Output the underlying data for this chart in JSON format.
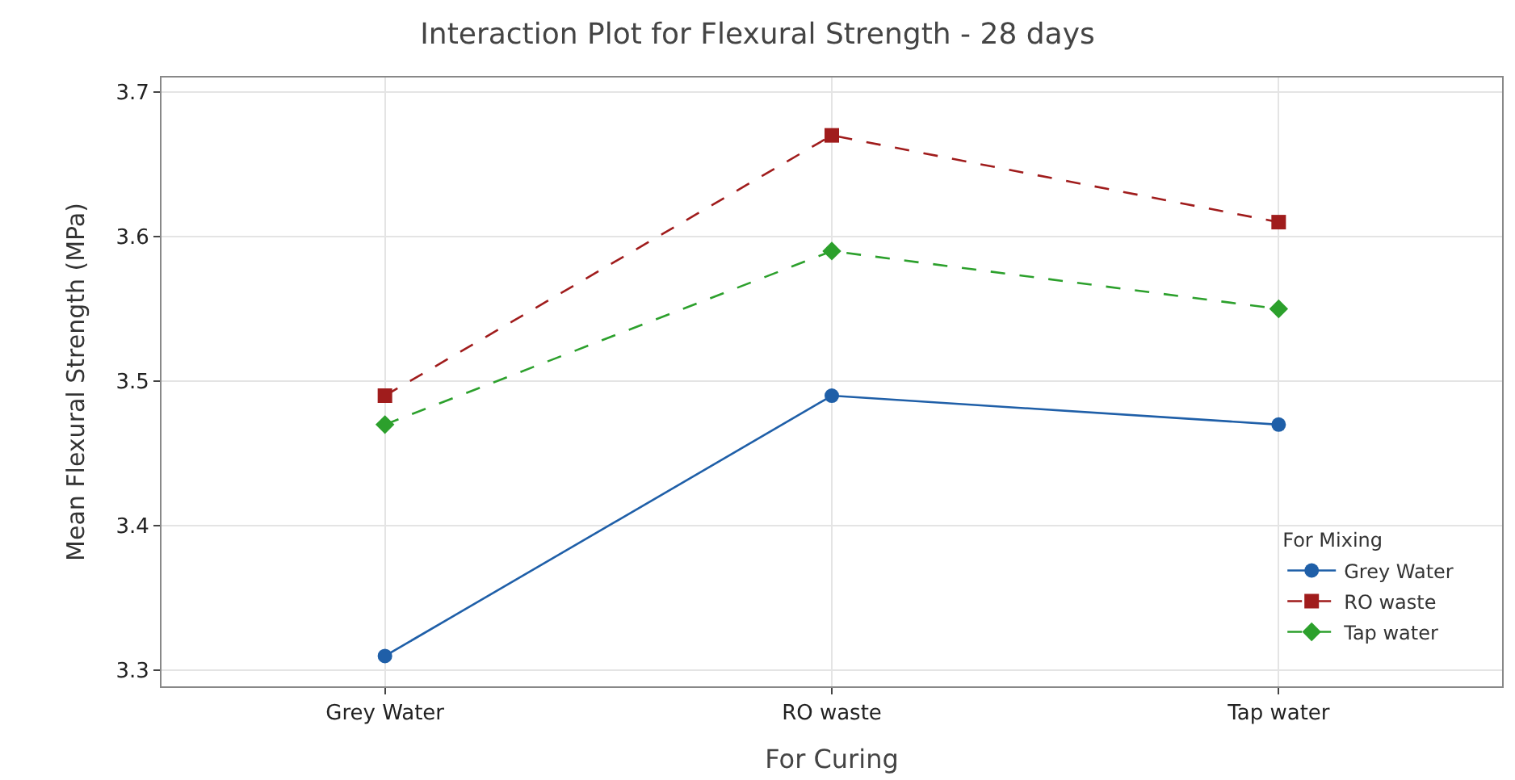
{
  "chart_data": {
    "type": "line",
    "title": "Interaction Plot for Flexural Strength - 28 days",
    "xlabel": "For Curing",
    "ylabel": "Mean Flexural Strength (MPa)",
    "legend_title": "For Mixing",
    "categories": [
      "Grey Water",
      "RO waste",
      "Tap water"
    ],
    "series": [
      {
        "name": "Grey Water",
        "color": "#1f5fa8",
        "values": [
          3.31,
          3.49,
          3.47
        ],
        "marker": "circle",
        "line_style": "solid"
      },
      {
        "name": "RO waste",
        "color": "#a01c1c",
        "values": [
          3.49,
          3.67,
          3.61
        ],
        "marker": "square",
        "line_style": "dashed"
      },
      {
        "name": "Tap water",
        "color": "#2ca02c",
        "values": [
          3.47,
          3.59,
          3.55
        ],
        "marker": "diamond",
        "line_style": "dashed"
      }
    ],
    "ylim": [
      3.289,
      3.71
    ],
    "yticks": [
      3.3,
      3.4,
      3.5,
      3.6,
      3.7
    ],
    "grid": true,
    "legend": "bottom right"
  }
}
